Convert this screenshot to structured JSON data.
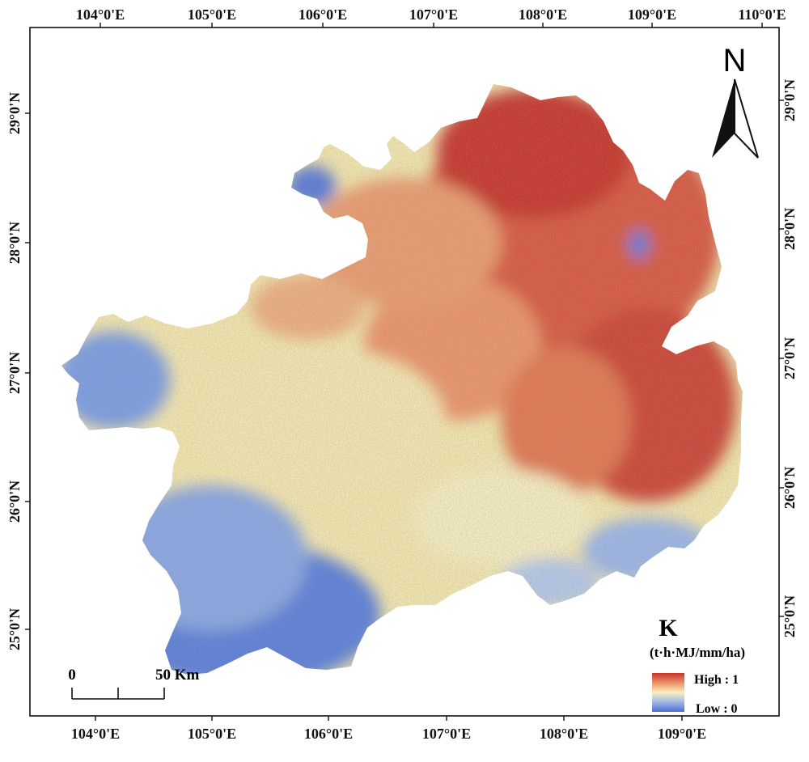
{
  "map": {
    "top_lon_labels": [
      "104°0'E",
      "105°0'E",
      "106°0'E",
      "107°0'E",
      "108°0'E",
      "109°0'E",
      "110°0'E"
    ],
    "bottom_lon_labels": [
      "104°0'E",
      "105°0'E",
      "106°0'E",
      "107°0'E",
      "108°0'E",
      "109°0'E"
    ],
    "left_lat_labels": [
      "29°0'N",
      "28°0'N",
      "27°0'N",
      "26°0'N",
      "25°0'N"
    ],
    "right_lat_labels": [
      "29°0'N",
      "28°0'N",
      "27°0'N",
      "26°0'N",
      "25°0'N"
    ],
    "colors": {
      "high": "#c8352c",
      "mid_high": "#ee9a6e",
      "mid": "#f7f1bd",
      "mid_low": "#a9c0e6",
      "low": "#4a6fd6",
      "frame": "#111111"
    }
  },
  "north_arrow": {
    "letter": "N"
  },
  "legend": {
    "title": "K",
    "unit": "(t·h·MJ/mm/ha)",
    "high_label": "High : 1",
    "low_label": "Low : 0"
  },
  "scale_bar": {
    "start_label": "0",
    "end_label": "50 Km"
  }
}
